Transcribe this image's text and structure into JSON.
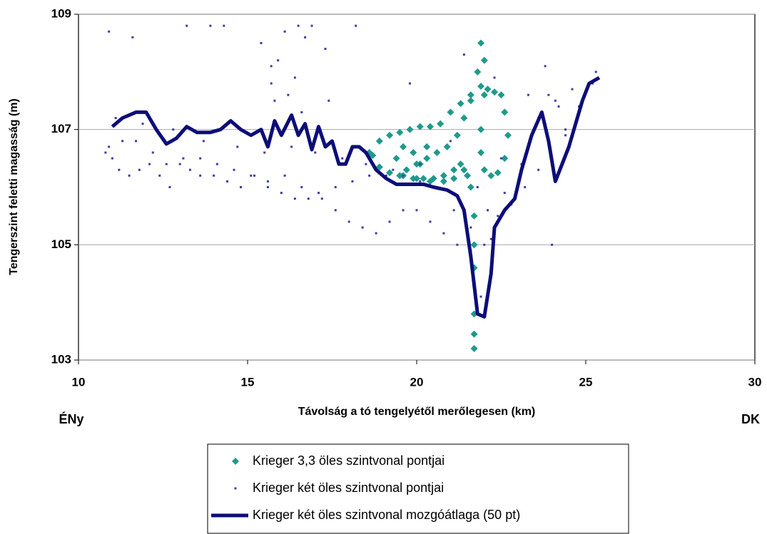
{
  "chart_data": {
    "type": "scatter",
    "x_label": "Távolság a tó tengelyétől merőlegesen (km)",
    "y_label": "Tengerszint feletti magasság (m)",
    "annotations": [
      "ÉNy",
      "DK"
    ],
    "xlim": [
      10,
      30
    ],
    "xticks": [
      10,
      15,
      20,
      25,
      30
    ],
    "ylim": [
      103,
      109
    ],
    "yticks": [
      103,
      105,
      107,
      109
    ],
    "grid": true,
    "series": [
      {
        "name": "Krieger 3,3 öles szintvonal pontjai",
        "color": "#1f9a8c",
        "marker": "diamond",
        "x": [
          18.6,
          18.9,
          19.2,
          19.5,
          19.8,
          20.1,
          20.4,
          20.7,
          21.0,
          21.3,
          21.6,
          21.9,
          22.1,
          22.3,
          22.5,
          22.6,
          22.7,
          22.6,
          22.4,
          22.2,
          22.0,
          21.9,
          21.9,
          22.0,
          22.0,
          21.9,
          21.8,
          21.6,
          21.4,
          21.2,
          20.9,
          20.6,
          20.3,
          20.0,
          19.7,
          19.5,
          19.6,
          19.9,
          20.2,
          20.5,
          20.8,
          21.1,
          21.3,
          21.5,
          21.6,
          21.7,
          21.7,
          21.7,
          21.7,
          21.7,
          21.7,
          19.4,
          19.6,
          19.9,
          20.1,
          20.3,
          18.7,
          18.9,
          19.2,
          19.6,
          20.0,
          20.4,
          20.8,
          21.1,
          21.4
        ],
        "values": [
          106.6,
          106.8,
          106.9,
          106.95,
          107.0,
          107.05,
          107.05,
          107.1,
          107.3,
          107.45,
          107.6,
          107.75,
          107.7,
          107.65,
          107.6,
          107.3,
          106.9,
          106.5,
          106.25,
          106.2,
          106.3,
          106.6,
          107.0,
          107.6,
          108.2,
          108.5,
          108.0,
          107.5,
          107.2,
          106.9,
          106.7,
          106.6,
          106.5,
          106.4,
          106.3,
          106.2,
          106.2,
          106.15,
          106.15,
          106.15,
          106.2,
          106.3,
          106.4,
          106.2,
          106.0,
          105.5,
          105.0,
          104.6,
          103.8,
          103.45,
          103.2,
          106.5,
          106.7,
          106.6,
          106.4,
          106.7,
          106.55,
          106.35,
          106.25,
          106.2,
          106.15,
          106.1,
          106.1,
          106.15,
          106.3
        ]
      },
      {
        "name": "Krieger két öles szintvonal pontjai",
        "color": "#3c3ca8",
        "marker": "dot",
        "x": [
          10.8,
          11.0,
          11.2,
          11.5,
          11.8,
          12.1,
          12.4,
          12.7,
          13.0,
          13.3,
          13.6,
          14.0,
          14.4,
          14.8,
          15.2,
          15.6,
          16.0,
          16.4,
          16.8,
          17.2,
          17.6,
          18.0,
          18.4,
          18.8,
          19.2,
          19.6,
          20.0,
          20.4,
          20.8,
          21.2,
          21.6,
          22.0,
          22.4,
          22.8,
          23.2,
          23.6,
          24.0,
          24.4,
          24.8,
          25.2,
          10.9,
          11.3,
          11.7,
          12.2,
          12.6,
          13.1,
          13.6,
          14.1,
          14.6,
          15.1,
          15.6,
          16.1,
          16.6,
          17.1,
          17.6,
          18.1,
          18.6,
          19.1,
          19.6,
          20.1,
          20.6,
          21.1,
          21.6,
          22.1,
          22.6,
          23.1,
          23.6,
          24.1,
          11.1,
          11.9,
          12.8,
          13.7,
          14.7,
          15.5,
          16.3,
          17.0,
          17.8,
          18.5,
          19.3,
          20.1,
          21.0,
          21.8,
          22.5,
          23.3,
          23.9,
          24.6,
          10.9,
          11.6,
          13.2,
          13.9,
          14.3,
          15.4,
          15.7,
          15.9,
          16.1,
          16.5,
          16.7,
          16.9,
          17.4,
          18.2,
          19.8,
          21.4,
          22.3,
          23.8,
          24.2,
          24.4,
          25.3,
          15.8,
          16.2,
          16.6,
          15.7,
          16.4,
          17.3,
          21.9,
          22.2,
          24.0
        ],
        "values": [
          106.6,
          106.5,
          106.3,
          106.2,
          106.3,
          106.4,
          106.2,
          106.0,
          106.4,
          106.3,
          106.2,
          106.2,
          106.1,
          106.0,
          106.2,
          106.0,
          105.9,
          105.8,
          105.8,
          105.8,
          105.6,
          105.4,
          105.3,
          105.2,
          105.4,
          105.6,
          105.6,
          105.4,
          105.2,
          105.0,
          104.9,
          105.0,
          105.5,
          105.7,
          106.0,
          106.3,
          106.5,
          106.9,
          107.4,
          107.8,
          106.7,
          106.8,
          106.8,
          106.6,
          106.4,
          106.5,
          106.5,
          106.4,
          106.3,
          106.2,
          106.1,
          106.2,
          106.0,
          105.9,
          106.0,
          106.1,
          106.2,
          106.2,
          106.2,
          106.1,
          106.0,
          105.6,
          105.3,
          105.6,
          105.9,
          106.4,
          107.2,
          107.5,
          107.2,
          107.1,
          107.0,
          106.8,
          106.7,
          106.6,
          106.7,
          106.6,
          106.5,
          106.4,
          106.3,
          106.4,
          106.8,
          106.0,
          106.5,
          107.6,
          107.6,
          107.7,
          108.7,
          108.6,
          108.8,
          108.8,
          108.8,
          108.5,
          108.1,
          108.2,
          108.7,
          108.8,
          108.6,
          108.8,
          107.5,
          108.8,
          107.8,
          108.3,
          107.9,
          108.1,
          107.4,
          107.0,
          108.0,
          107.5,
          107.6,
          107.3,
          107.8,
          107.9,
          108.4,
          104.1,
          105.1,
          105.0
        ]
      },
      {
        "name": "Krieger két öles szintvonal mozgóátlaga (50 pt)",
        "color": "#0d0d78",
        "marker": "line",
        "x": [
          11.0,
          11.3,
          11.7,
          12.0,
          12.3,
          12.6,
          12.9,
          13.2,
          13.5,
          13.9,
          14.2,
          14.5,
          14.8,
          15.1,
          15.4,
          15.6,
          15.8,
          16.0,
          16.3,
          16.5,
          16.7,
          16.9,
          17.1,
          17.3,
          17.5,
          17.7,
          17.9,
          18.1,
          18.3,
          18.5,
          18.8,
          19.1,
          19.4,
          19.8,
          20.2,
          20.5,
          20.9,
          21.2,
          21.4,
          21.6,
          21.8,
          22.0,
          22.2,
          22.3,
          22.6,
          22.9,
          23.1,
          23.4,
          23.7,
          23.9,
          24.1,
          24.3,
          24.5,
          24.7,
          24.9,
          25.1,
          25.4
        ],
        "values": [
          107.05,
          107.2,
          107.3,
          107.3,
          107.0,
          106.75,
          106.85,
          107.05,
          106.95,
          106.95,
          107.0,
          107.15,
          107.0,
          106.9,
          107.0,
          106.7,
          107.15,
          106.9,
          107.25,
          106.9,
          107.1,
          106.65,
          107.05,
          106.7,
          106.8,
          106.4,
          106.4,
          106.7,
          106.7,
          106.6,
          106.3,
          106.15,
          106.05,
          106.05,
          106.05,
          106.0,
          105.95,
          105.85,
          105.6,
          104.8,
          103.8,
          103.75,
          104.5,
          105.3,
          105.6,
          105.8,
          106.3,
          106.9,
          107.3,
          106.8,
          106.1,
          106.4,
          106.7,
          107.1,
          107.5,
          107.8,
          107.9
        ]
      }
    ]
  }
}
